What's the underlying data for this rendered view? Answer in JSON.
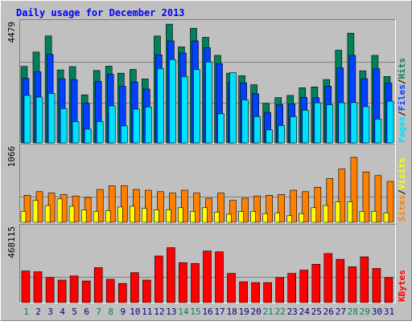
{
  "title": "Daily usage for December 2013",
  "colors": {
    "background": "#c0c0c0",
    "frame_light": "#ffffff",
    "frame_dark": "#808080",
    "title": "#0000ff",
    "hits": "#00805c",
    "files": "#0040ff",
    "pages": "#00e0ff",
    "visits": "#ffff00",
    "sites": "#ff8000",
    "kbytes": "#ff0000",
    "weekend_label": "#00805c",
    "weekday_label": "#000080",
    "gridline": "#808080"
  },
  "legend": {
    "top": [
      {
        "text": "Pages",
        "color": "#00e0ff"
      },
      {
        "text": "/",
        "color": "#000000"
      },
      {
        "text": "Files",
        "color": "#0040ff"
      },
      {
        "text": "/",
        "color": "#000000"
      },
      {
        "text": "Hits",
        "color": "#00805c"
      }
    ],
    "middle": [
      {
        "text": "Sites",
        "color": "#ff8000"
      },
      {
        "text": "/",
        "color": "#000000"
      },
      {
        "text": "Visits",
        "color": "#ffff00"
      }
    ],
    "bottom": [
      {
        "text": "KBytes",
        "color": "#ff0000"
      }
    ]
  },
  "chart_data": {
    "type": "bar",
    "title": "Daily usage for December 2013",
    "categories": [
      "1",
      "2",
      "3",
      "4",
      "5",
      "6",
      "7",
      "8",
      "9",
      "10",
      "11",
      "12",
      "13",
      "14",
      "15",
      "16",
      "17",
      "18",
      "19",
      "20",
      "21",
      "22",
      "23",
      "24",
      "25",
      "26",
      "27",
      "28",
      "29",
      "30",
      "31"
    ],
    "weekend_days": [
      1,
      7,
      8,
      14,
      15,
      21,
      22,
      28,
      29
    ],
    "panels": [
      {
        "name": "top",
        "ymax_label": "4479",
        "ylim": [
          0,
          4479
        ],
        "series": [
          {
            "name": "Hits",
            "values": [
              2790,
              3310,
              3900,
              2660,
              2780,
              1750,
              2640,
              2800,
              2540,
              2680,
              2330,
              3900,
              4330,
              3500,
              4180,
              3850,
              3190,
              2540,
              2450,
              2120,
              1440,
              1650,
              1730,
              2010,
              2040,
              2310,
              3380,
              4000,
              2630,
              3190,
              2420
            ]
          },
          {
            "name": "Files",
            "values": [
              2350,
              2590,
              3230,
              2340,
              2300,
              1440,
              2240,
              2500,
              2060,
              2220,
              1960,
              3210,
              3720,
              3280,
              3720,
              3470,
              2890,
              2200,
              2190,
              1790,
              1110,
              1400,
              1420,
              1660,
              1650,
              2070,
              2730,
              3190,
              2340,
              2700,
              2180
            ]
          },
          {
            "name": "Pages",
            "values": [
              1730,
              1670,
              1800,
              1250,
              770,
              500,
              780,
              1350,
              620,
              1230,
              1310,
              2710,
              3040,
              2420,
              2680,
              2950,
              1060,
              2560,
              1570,
              960,
              470,
              630,
              950,
              1190,
              1460,
              1390,
              1460,
              1470,
              1320,
              870,
              1520
            ]
          }
        ]
      },
      {
        "name": "middle",
        "ymax_label": "1066",
        "ylim": [
          0,
          1066
        ],
        "series": [
          {
            "name": "Sites",
            "values": [
              370,
              420,
              400,
              380,
              360,
              340,
              450,
              500,
              500,
              450,
              440,
              420,
              400,
              440,
              400,
              330,
              400,
              300,
              330,
              360,
              370,
              380,
              440,
              420,
              480,
              600,
              730,
              890,
              690,
              640,
              560
            ]
          },
          {
            "name": "Visits",
            "values": [
              150,
              300,
              230,
              320,
              220,
              170,
              150,
              160,
              210,
              220,
              190,
              170,
              170,
              200,
              150,
              200,
              140,
              110,
              150,
              150,
              120,
              130,
              90,
              120,
              200,
              230,
              280,
              280,
              150,
              150,
              130
            ]
          }
        ]
      },
      {
        "name": "bottom",
        "ymax_label": "468115",
        "ylim": [
          0,
          468115
        ],
        "series": [
          {
            "name": "KBytes",
            "values": [
              190000,
              185000,
              150000,
              135000,
              160000,
              130000,
              210000,
              140000,
              115000,
              180000,
              135000,
              280000,
              330000,
              240000,
              235000,
              310000,
              305000,
              175000,
              125000,
              120000,
              120000,
              150000,
              175000,
              195000,
              230000,
              295000,
              260000,
              215000,
              275000,
              205000,
              150000
            ]
          }
        ]
      }
    ]
  }
}
